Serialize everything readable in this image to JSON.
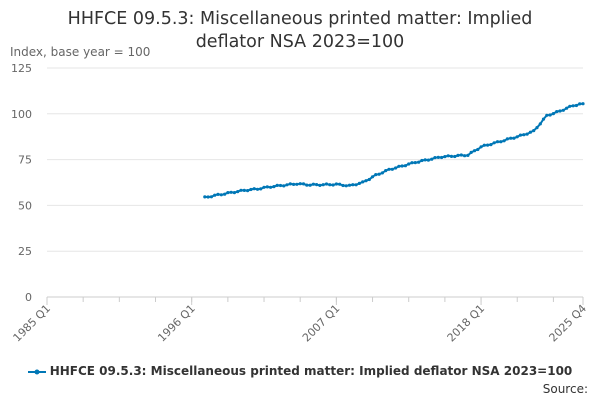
{
  "title_lines": [
    "HHFCE 09.5.3: Miscellaneous printed matter: Implied",
    "deflator NSA 2023=100"
  ],
  "y_unit_label": "Index, base year = 100",
  "source_label": "Source:",
  "colors": {
    "series": "#0077b6",
    "grid": "#e6e6e6",
    "axis": "#cccccc",
    "text": "#666666"
  },
  "chart_data": {
    "type": "line",
    "title": "HHFCE 09.5.3: Miscellaneous printed matter: Implied deflator NSA 2023=100",
    "ylabel": "Index, base year = 100",
    "xlabel": "",
    "ylim": [
      0,
      125
    ],
    "y_ticks": [
      0,
      25,
      50,
      75,
      100,
      125
    ],
    "x_ticks": [
      "1985 Q1",
      "1996 Q1",
      "2007 Q1",
      "2018 Q1",
      "2025 Q4"
    ],
    "x_range": [
      "1985 Q1",
      "2025 Q4"
    ],
    "grid": true,
    "legend_position": "bottom",
    "series": [
      {
        "name": "HHFCE 09.5.3: Miscellaneous printed matter: Implied deflator NSA 2023=100",
        "anchors": [
          [
            "1997 Q1",
            54.3
          ],
          [
            "1997 Q4",
            55.4
          ],
          [
            "1999 Q1",
            57.0
          ],
          [
            "2000 Q1",
            58.2
          ],
          [
            "2001 Q1",
            59.0
          ],
          [
            "2002 Q1",
            60.2
          ],
          [
            "2003 Q1",
            61.0
          ],
          [
            "2004 Q1",
            61.8
          ],
          [
            "2005 Q1",
            61.2
          ],
          [
            "2006 Q1",
            61.3
          ],
          [
            "2007 Q1",
            61.5
          ],
          [
            "2008 Q1",
            60.7
          ],
          [
            "2009 Q1",
            62.5
          ],
          [
            "2010 Q1",
            66.5
          ],
          [
            "2011 Q1",
            69.5
          ],
          [
            "2012 Q1",
            71.5
          ],
          [
            "2013 Q1",
            73.5
          ],
          [
            "2014 Q1",
            75.0
          ],
          [
            "2015 Q1",
            76.5
          ],
          [
            "2016 Q1",
            77.0
          ],
          [
            "2017 Q1",
            77.5
          ],
          [
            "2018 Q1",
            82.0
          ],
          [
            "2019 Q1",
            84.0
          ],
          [
            "2020 Q1",
            86.0
          ],
          [
            "2021 Q1",
            88.0
          ],
          [
            "2022 Q1",
            90.5
          ],
          [
            "2023 Q1",
            99.0
          ],
          [
            "2024 Q1",
            101.5
          ],
          [
            "2025 Q1",
            104.5
          ],
          [
            "2025 Q4",
            105.5
          ]
        ]
      }
    ]
  }
}
